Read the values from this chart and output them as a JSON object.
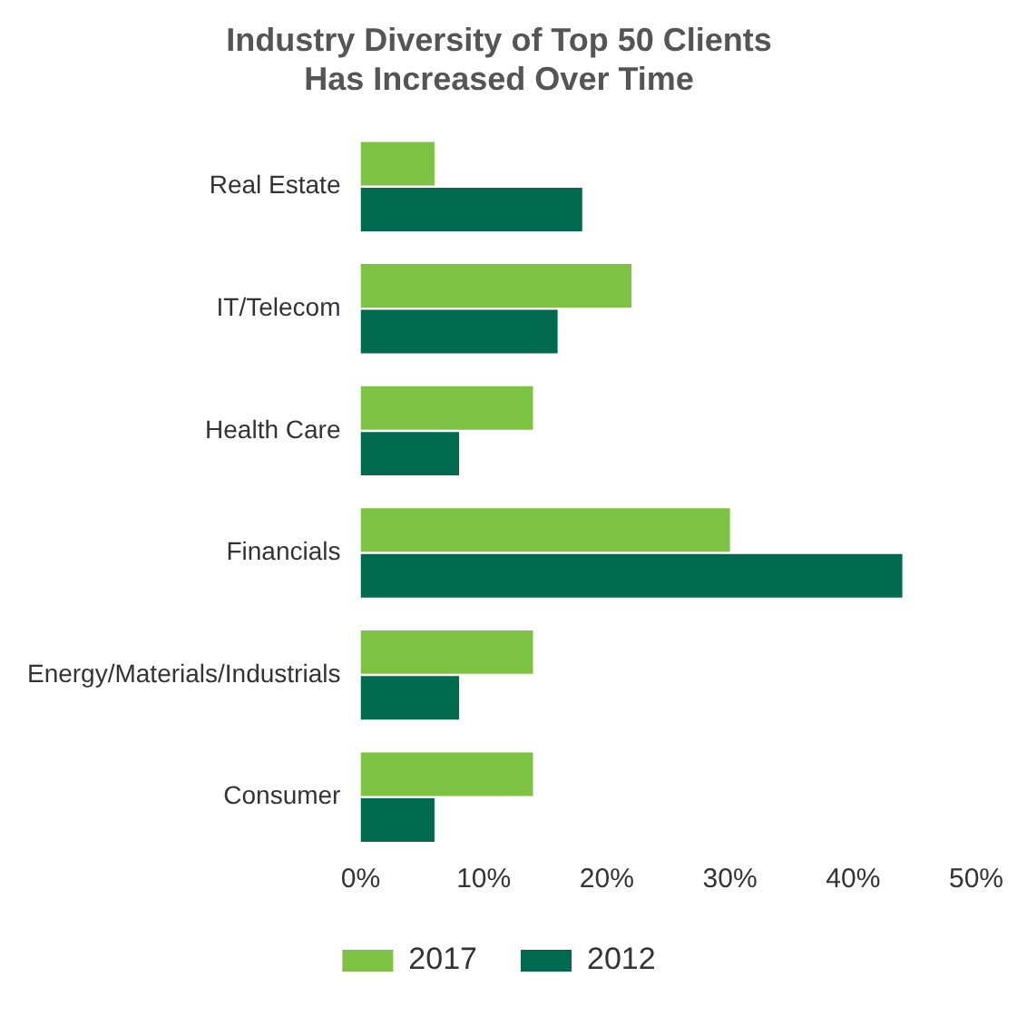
{
  "chart_data": {
    "type": "bar",
    "orientation": "horizontal",
    "title": "Industry Diversity of Top 50 Clients\nHas Increased Over Time",
    "categories": [
      "Real Estate",
      "IT/Telecom",
      "Health Care",
      "Financials",
      "Energy/Materials/Industrials",
      "Consumer"
    ],
    "series": [
      {
        "name": "2017",
        "color": "#7dc242",
        "values": [
          6,
          22,
          14,
          30,
          14,
          14
        ]
      },
      {
        "name": "2012",
        "color": "#006a4e",
        "values": [
          18,
          16,
          8,
          44,
          8,
          6
        ]
      }
    ],
    "xlim": [
      0,
      50
    ],
    "xticks": [
      {
        "value": 0,
        "label": "0%"
      },
      {
        "value": 10,
        "label": "10%"
      },
      {
        "value": 20,
        "label": "20%"
      },
      {
        "value": 30,
        "label": "30%"
      },
      {
        "value": 40,
        "label": "40%"
      },
      {
        "value": 50,
        "label": "50%"
      }
    ],
    "grid": false,
    "legend": "bottom"
  }
}
